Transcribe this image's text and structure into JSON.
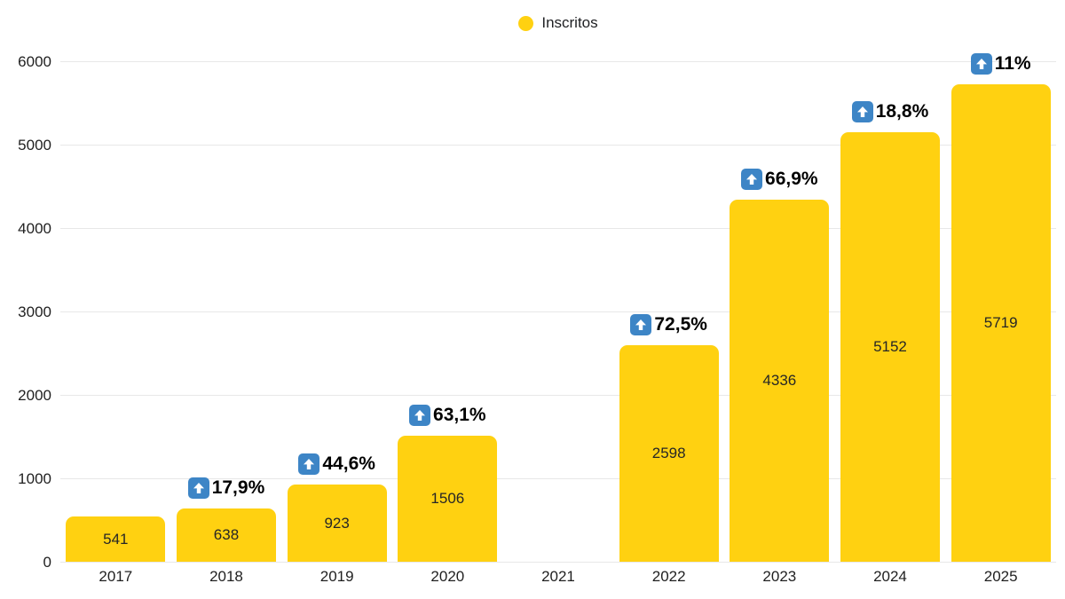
{
  "chart_data": {
    "type": "bar",
    "title": "",
    "legend": [
      {
        "label": "Inscritos",
        "color": "#FFD111"
      }
    ],
    "legend_position": "top-center",
    "categories": [
      "2017",
      "2018",
      "2019",
      "2020",
      "2021",
      "2022",
      "2023",
      "2024",
      "2025"
    ],
    "series": [
      {
        "name": "Inscritos",
        "values": [
          541,
          638,
          923,
          1506,
          null,
          2598,
          4336,
          5152,
          5719
        ]
      }
    ],
    "growth_labels": [
      "",
      "17,9%",
      "44,6%",
      "63,1%",
      "",
      "72,5%",
      "66,9%",
      "18,8%",
      "11%"
    ],
    "ylim": [
      0,
      6000
    ],
    "yticks": [
      0,
      1000,
      2000,
      3000,
      4000,
      5000,
      6000
    ],
    "grid": "horizontal",
    "colors": {
      "bar": "#FFD111",
      "badge_blue": "#3D85C6",
      "badge_arrow": "#FFFFFF",
      "value_text": "#262626",
      "pct_text": "#000000",
      "axis_text": "#1F1F1F",
      "gridline": "#E8E8E8"
    },
    "icons": {
      "legend_dot": "circle-icon",
      "growth": "up-arrow-icon"
    }
  }
}
